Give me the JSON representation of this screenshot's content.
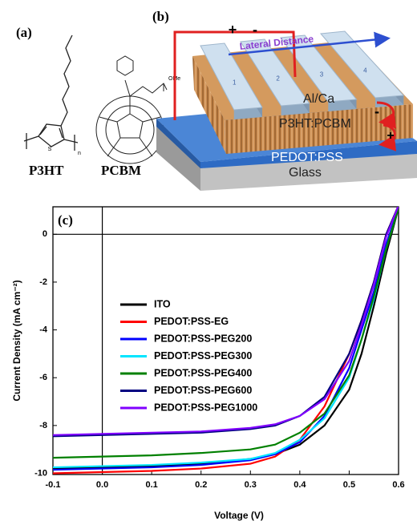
{
  "panel_a": {
    "label": "(a)",
    "polymer": "P3HT",
    "fullerene": "PCBM",
    "sulfur": "S",
    "repeat": "n",
    "ester": "OMe"
  },
  "panel_b": {
    "label": "(b)",
    "plus": "+",
    "minus": "-",
    "arrow_label": "Lateral Distance",
    "electrodes": [
      "1",
      "2",
      "3",
      "4"
    ],
    "cathode": "Al/Ca",
    "active_layer": "P3HT:PCBM",
    "hole_layer": "PEDOT:PSS",
    "substrate": "Glass",
    "charge_minus": "-",
    "charge_plus": "+"
  },
  "chart_data": {
    "type": "line",
    "panel_label": "(c)",
    "x_label": "Voltage (V)",
    "y_label": "Current Density (mA cm⁻²)",
    "x": [
      -0.1,
      0,
      0.1,
      0.2,
      0.3,
      0.35,
      0.4,
      0.45,
      0.5,
      0.525,
      0.55,
      0.575,
      0.6
    ],
    "series": [
      {
        "name": "ITO",
        "color": "#000000",
        "values": [
          -9.8,
          -9.75,
          -9.7,
          -9.6,
          -9.4,
          -9.2,
          -8.8,
          -8.0,
          -6.5,
          -5.0,
          -3.0,
          -0.8,
          1.1
        ]
      },
      {
        "name": "PEDOT:PSS-EG",
        "color": "#ff0000",
        "values": [
          -10.0,
          -9.95,
          -9.9,
          -9.8,
          -9.6,
          -9.3,
          -8.6,
          -7.2,
          -5.0,
          -3.6,
          -2.0,
          0.0,
          1.2
        ]
      },
      {
        "name": "PEDOT:PSS-PEG200",
        "color": "#0000ff",
        "values": [
          -9.85,
          -9.8,
          -9.75,
          -9.65,
          -9.45,
          -9.2,
          -8.7,
          -7.6,
          -5.6,
          -4.0,
          -2.4,
          -0.4,
          1.1
        ]
      },
      {
        "name": "PEDOT:PSS-PEG300",
        "color": "#00e5ff",
        "values": [
          -9.75,
          -9.7,
          -9.65,
          -9.55,
          -9.4,
          -9.15,
          -8.6,
          -7.7,
          -6.0,
          -4.4,
          -2.7,
          -0.6,
          1.1
        ]
      },
      {
        "name": "PEDOT:PSS-PEG400",
        "color": "#008000",
        "values": [
          -9.35,
          -9.3,
          -9.25,
          -9.15,
          -9.0,
          -8.8,
          -8.3,
          -7.5,
          -5.9,
          -4.4,
          -2.6,
          -0.6,
          1.1
        ]
      },
      {
        "name": "PEDOT:PSS-PEG600",
        "color": "#000080",
        "values": [
          -8.45,
          -8.4,
          -8.35,
          -8.3,
          -8.15,
          -8.0,
          -7.6,
          -6.8,
          -5.0,
          -3.6,
          -2.0,
          0.0,
          1.2
        ]
      },
      {
        "name": "PEDOT:PSS-PEG1000",
        "color": "#8000ff",
        "values": [
          -8.4,
          -8.35,
          -8.3,
          -8.25,
          -8.1,
          -7.95,
          -7.6,
          -6.9,
          -5.3,
          -3.8,
          -2.1,
          -0.1,
          1.2
        ]
      }
    ],
    "xlim": [
      -0.1,
      0.6
    ],
    "ylim": [
      -10.05,
      1.15
    ],
    "xticks": [
      -0.1,
      {
        "value": 0,
        "label": "0.0"
      },
      0.1,
      0.2,
      0.3,
      0.4,
      0.5,
      0.6
    ],
    "yticks": [
      0,
      -2,
      -4,
      -6,
      -8,
      -10
    ],
    "zero_lines": true,
    "legend": "center-left"
  }
}
